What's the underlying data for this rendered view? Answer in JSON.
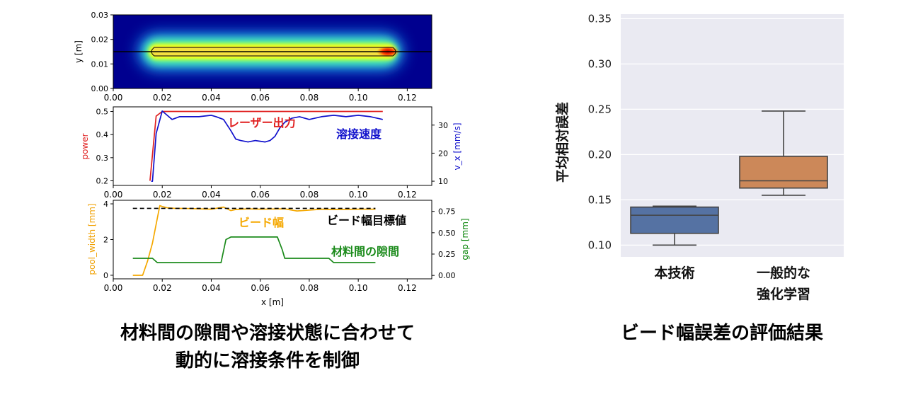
{
  "chart_data": [
    {
      "type": "heatmap",
      "title": "",
      "xlabel": "",
      "ylabel": "y [m]",
      "xlim": [
        0.0,
        0.13
      ],
      "ylim": [
        0.0,
        0.03
      ],
      "xticks": [
        "0.00",
        "0.02",
        "0.04",
        "0.06",
        "0.08",
        "0.10",
        "0.12"
      ],
      "yticks": [
        "0.00",
        "0.01",
        "0.02",
        "0.03"
      ],
      "bead_x_range": [
        0.015,
        0.115
      ],
      "bead_y_center": 0.015,
      "colors": {
        "background": "#00008f",
        "hot": "#c00000",
        "warm": "#ffff00"
      }
    },
    {
      "type": "line",
      "xlim": [
        0.0,
        0.13
      ],
      "xticks": [
        "0.00",
        "0.02",
        "0.04",
        "0.06",
        "0.08",
        "0.10",
        "0.12"
      ],
      "left_axis": {
        "label": "power",
        "ylim": [
          0.18,
          0.52
        ],
        "ticks": [
          "0.2",
          "0.3",
          "0.4",
          "0.5"
        ],
        "color": "#e02020"
      },
      "right_axis": {
        "label": "v_x [mm/s]",
        "ylim": [
          8.5,
          36.5
        ],
        "ticks": [
          "10",
          "20",
          "30"
        ],
        "color": "#1010cc"
      },
      "series": [
        {
          "name": "レーザー出力",
          "axis": "left",
          "color": "#e02020",
          "x": [
            0.015,
            0.0175,
            0.02,
            0.11
          ],
          "y": [
            0.2,
            0.48,
            0.5,
            0.5
          ]
        },
        {
          "name": "溶接速度",
          "axis": "right",
          "color": "#1010cc",
          "x": [
            0.0155,
            0.016,
            0.0175,
            0.02,
            0.022,
            0.024,
            0.027,
            0.03,
            0.035,
            0.04,
            0.042,
            0.045,
            0.048,
            0.05,
            0.052,
            0.055,
            0.058,
            0.062,
            0.064,
            0.066,
            0.068,
            0.07,
            0.073,
            0.076,
            0.08,
            0.085,
            0.09,
            0.095,
            0.1,
            0.105,
            0.11
          ],
          "y": [
            10,
            10,
            27,
            35,
            33.5,
            32,
            33,
            33,
            33,
            33.5,
            33,
            32,
            28,
            25,
            24.5,
            24,
            24.5,
            24,
            24.5,
            26,
            29,
            31,
            32.5,
            33,
            32,
            33,
            33.5,
            33,
            33.5,
            33,
            32
          ]
        }
      ],
      "annotations": [
        "レーザー出力",
        "溶接速度"
      ]
    },
    {
      "type": "line",
      "xlabel": "x [m]",
      "xlim": [
        0.0,
        0.13
      ],
      "xticks": [
        "0.00",
        "0.02",
        "0.04",
        "0.06",
        "0.08",
        "0.10",
        "0.12"
      ],
      "left_axis": {
        "label": "pool_width [mm]",
        "ylim": [
          -0.2,
          4.2
        ],
        "ticks": [
          "0",
          "2",
          "4"
        ],
        "color": "#f0a000"
      },
      "right_axis": {
        "label": "gap [mm]",
        "ylim": [
          -0.04,
          0.88
        ],
        "ticks": [
          "0.00",
          "0.25",
          "0.50",
          "0.75"
        ],
        "color": "#008000"
      },
      "series": [
        {
          "name": "ビード幅",
          "axis": "left",
          "color": "#f5a800",
          "x": [
            0.008,
            0.012,
            0.014,
            0.016,
            0.018,
            0.019,
            0.02,
            0.022,
            0.025,
            0.03,
            0.035,
            0.04,
            0.045,
            0.048,
            0.05,
            0.055,
            0.06,
            0.065,
            0.07,
            0.075,
            0.08,
            0.085,
            0.09,
            0.1,
            0.107
          ],
          "y": [
            0,
            0,
            0.8,
            1.8,
            3.2,
            3.9,
            3.85,
            3.78,
            3.75,
            3.74,
            3.72,
            3.7,
            3.82,
            3.62,
            3.68,
            3.72,
            3.7,
            3.71,
            3.72,
            3.6,
            3.65,
            3.7,
            3.68,
            3.7,
            3.7
          ]
        },
        {
          "name": "ビード幅目標値",
          "axis": "left",
          "color": "#000000",
          "dashed": true,
          "x": [
            0.008,
            0.107
          ],
          "y": [
            3.75,
            3.75
          ]
        },
        {
          "name": "材料間の隙間",
          "axis": "right",
          "color": "#1a8a1a",
          "x": [
            0.008,
            0.016,
            0.018,
            0.02,
            0.044,
            0.046,
            0.048,
            0.05,
            0.067,
            0.069,
            0.07,
            0.088,
            0.09,
            0.107
          ],
          "y": [
            0.2,
            0.2,
            0.15,
            0.15,
            0.15,
            0.42,
            0.45,
            0.45,
            0.45,
            0.3,
            0.2,
            0.2,
            0.15,
            0.15
          ]
        }
      ],
      "annotations": [
        "ビード幅",
        "ビード幅目標値",
        "材料間の隙間"
      ]
    },
    {
      "type": "box",
      "ylabel": "平均相対誤差",
      "ylim": [
        0.087,
        0.355
      ],
      "yticks": [
        "0.10",
        "0.15",
        "0.20",
        "0.25",
        "0.30",
        "0.35"
      ],
      "categories": [
        "本技術",
        "一般的な強化学習"
      ],
      "category_lines": [
        [
          "本技術"
        ],
        [
          "一般的な",
          "強化学習"
        ]
      ],
      "boxes": [
        {
          "name": "本技術",
          "color": "#5572a3",
          "whisker_low": 0.1,
          "q1": 0.113,
          "median": 0.133,
          "q3": 0.142,
          "whisker_high": 0.143
        },
        {
          "name": "一般的な強化学習",
          "color": "#cc8859",
          "whisker_low": 0.155,
          "q1": 0.163,
          "median": 0.171,
          "q3": 0.198,
          "whisker_high": 0.248
        }
      ],
      "colors": {
        "plot_bg": "#eaeaf2",
        "grid": "#ffffff",
        "edge": "#444444"
      }
    }
  ],
  "captions": {
    "left_line1": "材料間の隙間や溶接状態に合わせて",
    "left_line2": "動的に溶接条件を制御",
    "right": "ビード幅誤差の評価結果"
  }
}
